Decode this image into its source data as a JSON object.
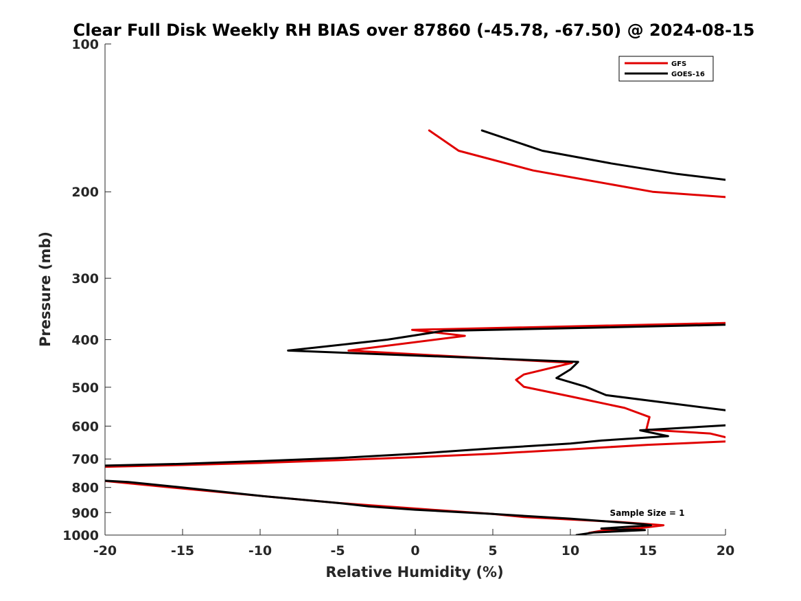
{
  "chart_data": {
    "type": "line",
    "title": "Clear Full Disk Weekly RH BIAS over 87860 (-45.78, -67.50) @ 2024-08-15",
    "xlabel": "Relative Humidity (%)",
    "ylabel": "Pressure (mb)",
    "xlim": [
      -20,
      20
    ],
    "ylim": [
      100,
      1000
    ],
    "y_scale": "log",
    "y_reversed": true,
    "x_ticks": [
      -20,
      -15,
      -10,
      -5,
      0,
      5,
      10,
      15,
      20
    ],
    "x_tick_labels": [
      "-20",
      "-15",
      "-10",
      "-5",
      "0",
      "5",
      "10",
      "15",
      "20"
    ],
    "y_ticks": [
      100,
      200,
      300,
      400,
      500,
      600,
      700,
      800,
      900,
      1000
    ],
    "y_tick_labels": [
      "100",
      "200",
      "300",
      "400",
      "500",
      "600",
      "700",
      "800",
      "900",
      "1000"
    ],
    "grid": false,
    "legend_position": "top-right",
    "annotation": "Sample Size = 1",
    "series": [
      {
        "name": "GFS",
        "color": "#e00000",
        "points": [
          [
            0.9,
            150
          ],
          [
            2.8,
            165
          ],
          [
            7.6,
            181
          ],
          [
            15.3,
            200
          ],
          [
            20.0,
            205
          ],
          [
            null,
            null
          ],
          [
            20.0,
            370
          ],
          [
            -0.2,
            382
          ],
          [
            3.2,
            393
          ],
          [
            -4.3,
            421
          ],
          [
            10.1,
            446
          ],
          [
            7.0,
            471
          ],
          [
            6.5,
            483
          ],
          [
            7.0,
            499
          ],
          [
            10.0,
            522
          ],
          [
            13.5,
            551
          ],
          [
            15.1,
            575
          ],
          [
            15.0,
            592
          ],
          [
            14.9,
            610
          ],
          [
            19.0,
            621
          ],
          [
            20.0,
            632
          ],
          [
            null,
            null
          ],
          [
            20.0,
            645
          ],
          [
            15.0,
            655
          ],
          [
            10.0,
            669
          ],
          [
            5.0,
            683
          ],
          [
            0.0,
            694
          ],
          [
            -5.0,
            704
          ],
          [
            -10.0,
            713
          ],
          [
            -15.0,
            720
          ],
          [
            -20.0,
            726
          ],
          [
            null,
            null
          ],
          [
            -20.0,
            776
          ],
          [
            -15.0,
            804
          ],
          [
            -10.0,
            832
          ],
          [
            -5.0,
            860
          ],
          [
            0.0,
            883
          ],
          [
            5.0,
            906
          ],
          [
            7.0,
            919
          ],
          [
            13.0,
            940
          ],
          [
            16.0,
            955
          ],
          [
            14.5,
            968
          ],
          [
            12.0,
            980
          ],
          [
            11.2,
            990
          ]
        ]
      },
      {
        "name": "GOES-16",
        "color": "#000000",
        "points": [
          [
            4.3,
            150
          ],
          [
            8.2,
            165
          ],
          [
            12.6,
            175
          ],
          [
            16.9,
            184
          ],
          [
            20.0,
            189
          ],
          [
            null,
            null
          ],
          [
            20.0,
            373
          ],
          [
            1.8,
            384
          ],
          [
            -1.8,
            400
          ],
          [
            -8.2,
            421
          ],
          [
            10.5,
            444
          ],
          [
            10.0,
            460
          ],
          [
            9.1,
            479
          ],
          [
            11.0,
            499
          ],
          [
            12.3,
            519
          ],
          [
            20.0,
            557
          ],
          [
            null,
            null
          ],
          [
            20.0,
            598
          ],
          [
            14.5,
            612
          ],
          [
            16.3,
            629
          ],
          [
            12.0,
            642
          ],
          [
            10.0,
            651
          ],
          [
            5.0,
            666
          ],
          [
            0.0,
            683
          ],
          [
            -5.0,
            697
          ],
          [
            -10.0,
            707
          ],
          [
            -15.0,
            716
          ],
          [
            -20.0,
            722
          ],
          [
            null,
            null
          ],
          [
            -20.0,
            775
          ],
          [
            -18.5,
            780
          ],
          [
            -15.0,
            800
          ],
          [
            -10.0,
            832
          ],
          [
            -5.0,
            860
          ],
          [
            -3.0,
            874
          ],
          [
            0.0,
            888
          ],
          [
            5.0,
            906
          ],
          [
            10.0,
            926
          ],
          [
            14.7,
            950
          ],
          [
            15.2,
            955
          ],
          [
            12.0,
            970
          ],
          [
            14.8,
            977
          ],
          [
            11.5,
            988
          ],
          [
            10.4,
            1000
          ]
        ]
      }
    ]
  }
}
